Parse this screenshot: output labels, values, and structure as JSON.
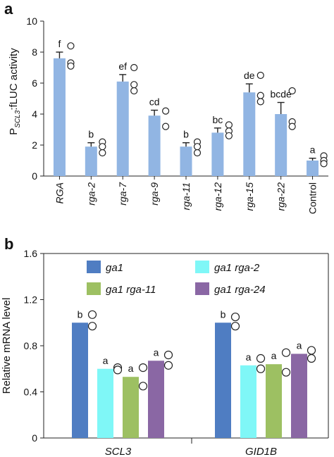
{
  "panels": [
    {
      "letter": "a",
      "ylabel_main": "P",
      "ylabel_sub": "SCL3",
      "ylabel_rest": ":fLUC activity"
    },
    {
      "letter": "b",
      "ylabel": "Relative mRNA level"
    }
  ],
  "chart_data": [
    {
      "type": "bar",
      "panel": "a",
      "ylabel": "PSCL3:fLUC activity",
      "ylim": [
        0,
        10
      ],
      "yticks": [
        0,
        2,
        4,
        6,
        8,
        10
      ],
      "grid": false,
      "bar_color": "#91b5e3",
      "categories": [
        "RGA",
        "rga-2",
        "rga-7",
        "rga-9",
        "rga-11",
        "rga-12",
        "rga-15",
        "rga-22",
        "Control"
      ],
      "italic_categories": [
        true,
        true,
        true,
        true,
        true,
        true,
        true,
        true,
        false
      ],
      "values": [
        7.6,
        1.9,
        6.1,
        3.9,
        1.9,
        2.8,
        5.4,
        4.0,
        1.0
      ],
      "errors": [
        0.4,
        0.25,
        0.45,
        0.35,
        0.25,
        0.3,
        0.55,
        0.75,
        0.15
      ],
      "significance": [
        "f",
        "b",
        "ef",
        "cd",
        "b",
        "bc",
        "de",
        "bcde",
        "a"
      ],
      "replicates": [
        [
          8.4,
          7.3,
          7.1
        ],
        [
          2.2,
          1.9,
          1.5
        ],
        [
          7.0,
          5.9,
          5.5
        ],
        [
          4.2,
          3.2
        ],
        [
          2.2,
          1.9,
          1.5
        ],
        [
          3.3,
          2.9,
          2.6
        ],
        [
          6.5,
          5.2,
          4.8
        ],
        [
          5.5,
          3.5,
          3.2
        ],
        [
          1.3,
          1.0,
          0.8
        ]
      ]
    },
    {
      "type": "bar",
      "panel": "b",
      "ylabel": "Relative mRNA level",
      "ylim": [
        0,
        1.6
      ],
      "yticks": [
        "0",
        "0.4",
        "0.8",
        "1.2",
        "1.6"
      ],
      "grid": false,
      "legend_position": "top",
      "categories": [
        "SCL3",
        "GID1B"
      ],
      "series": [
        {
          "name": "ga1",
          "color": "#4f7dc2",
          "values": [
            1.0,
            1.0
          ],
          "significance": [
            "b",
            "b"
          ],
          "replicates": [
            [
              1.07,
              0.97
            ],
            [
              1.05,
              0.97
            ]
          ]
        },
        {
          "name": "ga1 rga-2",
          "color": "#7ff7f7",
          "values": [
            0.6,
            0.63
          ],
          "significance": [
            "a",
            "a"
          ],
          "replicates": [
            [
              0.61,
              0.59
            ],
            [
              0.69,
              0.6
            ]
          ]
        },
        {
          "name": "ga1 rga-11",
          "color": "#9dc062",
          "values": [
            0.53,
            0.64
          ],
          "significance": [
            "a",
            "a"
          ],
          "replicates": [
            [
              0.61,
              0.45
            ],
            [
              0.74,
              0.57
            ]
          ]
        },
        {
          "name": "ga1 rga-24",
          "color": "#8a67a4",
          "values": [
            0.67,
            0.73
          ],
          "significance": [
            "a",
            "a"
          ],
          "replicates": [
            [
              0.72,
              0.63
            ],
            [
              0.76,
              0.69
            ]
          ]
        }
      ]
    }
  ]
}
